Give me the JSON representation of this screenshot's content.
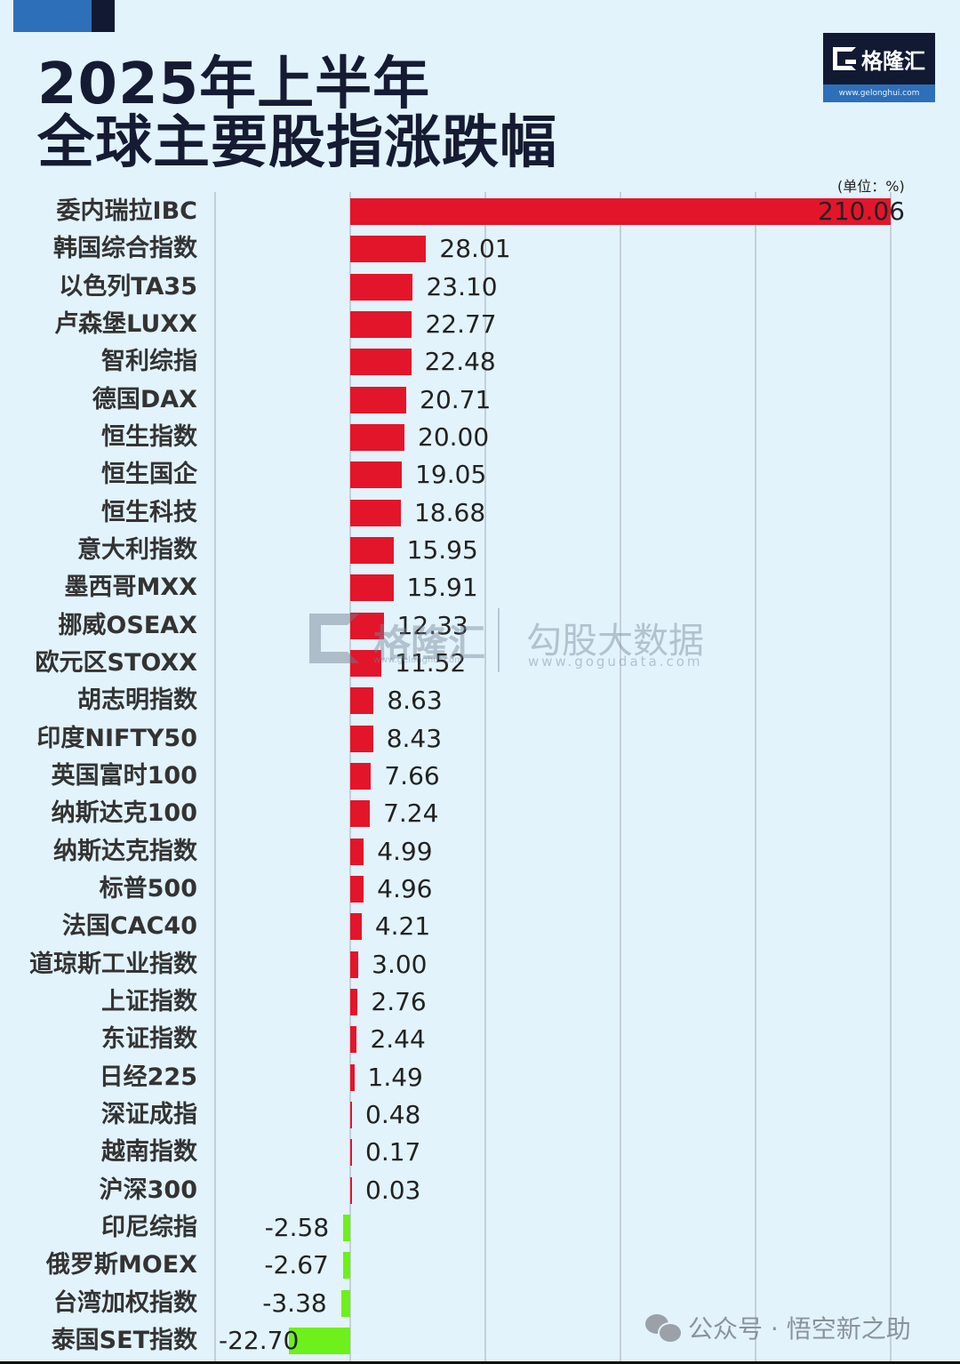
{
  "header": {
    "title_line1": "2025年上半年",
    "title_line2": "全球主要股指涨跌幅",
    "logo_text": "格隆汇",
    "logo_url": "www.gelonghui.com"
  },
  "unit_label": "(单位：%)",
  "watermark": {
    "brand1": "格隆汇",
    "brand1_url": "www.gelonghui.com",
    "brand2": "勾股大数据",
    "brand2_url": "www.gogudata.com"
  },
  "footer": {
    "text": "公众号 · 悟空新之助"
  },
  "colors": {
    "positive": "#e3152b",
    "negative": "#6ef01a",
    "background": "#e2f3fc",
    "title": "#141b33"
  },
  "chart_data": {
    "type": "bar",
    "orientation": "horizontal",
    "title": "2025年上半年 全球主要股指涨跌幅",
    "unit": "%",
    "xlabel": "",
    "ylabel": "",
    "grid": true,
    "legend": "none",
    "note": "委内瑞拉IBC bar truncated to fit chart width",
    "categories": [
      "委内瑞拉IBC",
      "韩国综合指数",
      "以色列TA35",
      "卢森堡LUXX",
      "智利综指",
      "德国DAX",
      "恒生指数",
      "恒生国企",
      "恒生科技",
      "意大利指数",
      "墨西哥MXX",
      "挪威OSEAX",
      "欧元区STOXX",
      "胡志明指数",
      "印度NIFTY50",
      "英国富时100",
      "纳斯达克100",
      "纳斯达克指数",
      "标普500",
      "法国CAC40",
      "道琼斯工业指数",
      "上证指数",
      "东证指数",
      "日经225",
      "深证成指",
      "越南指数",
      "沪深300",
      "印尼综指",
      "俄罗斯MOEX",
      "台湾加权指数",
      "泰国SET指数"
    ],
    "values": [
      210.06,
      28.01,
      23.1,
      22.77,
      22.48,
      20.71,
      20.0,
      19.05,
      18.68,
      15.95,
      15.91,
      12.33,
      11.52,
      8.63,
      8.43,
      7.66,
      7.24,
      4.99,
      4.96,
      4.21,
      3.0,
      2.76,
      2.44,
      1.49,
      0.48,
      0.17,
      0.03,
      -2.58,
      -2.67,
      -3.38,
      -22.7
    ],
    "labels": [
      "210.06",
      "28.01",
      "23.10",
      "22.77",
      "22.48",
      "20.71",
      "20.00",
      "19.05",
      "18.68",
      "15.95",
      "15.91",
      "12.33",
      "11.52",
      "8.63",
      "8.43",
      "7.66",
      "7.24",
      "4.99",
      "4.96",
      "4.21",
      "3.00",
      "2.76",
      "2.44",
      "1.49",
      "0.48",
      "0.17",
      "0.03",
      "-2.58",
      "-2.67",
      "-3.38",
      "-22.70"
    ]
  }
}
